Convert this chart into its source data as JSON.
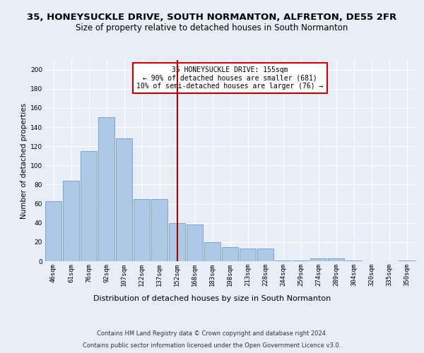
{
  "title1": "35, HONEYSUCKLE DRIVE, SOUTH NORMANTON, ALFRETON, DE55 2FR",
  "title2": "Size of property relative to detached houses in South Normanton",
  "xlabel": "Distribution of detached houses by size in South Normanton",
  "ylabel": "Number of detached properties",
  "footer1": "Contains HM Land Registry data © Crown copyright and database right 2024.",
  "footer2": "Contains public sector information licensed under the Open Government Licence v3.0.",
  "categories": [
    "46sqm",
    "61sqm",
    "76sqm",
    "92sqm",
    "107sqm",
    "122sqm",
    "137sqm",
    "152sqm",
    "168sqm",
    "183sqm",
    "198sqm",
    "213sqm",
    "228sqm",
    "244sqm",
    "259sqm",
    "274sqm",
    "289sqm",
    "304sqm",
    "320sqm",
    "335sqm",
    "350sqm"
  ],
  "values": [
    63,
    84,
    115,
    150,
    128,
    65,
    65,
    40,
    38,
    20,
    15,
    13,
    13,
    1,
    1,
    3,
    3,
    1,
    0,
    0,
    1
  ],
  "bar_color": "#aec8e8",
  "bar_edge_color": "#5a8fc0",
  "vline_x": 7,
  "vline_color": "#aa0000",
  "annotation_text": "35 HONEYSUCKLE DRIVE: 155sqm\n← 90% of detached houses are smaller (681)\n10% of semi-detached houses are larger (76) →",
  "annotation_box_color": "#ffffff",
  "annotation_box_edge": "#cc0000",
  "bg_color": "#e8eef7",
  "plot_bg_color": "#e8eef7",
  "ylim": [
    0,
    210
  ],
  "yticks": [
    0,
    20,
    40,
    60,
    80,
    100,
    120,
    140,
    160,
    180,
    200
  ],
  "grid_color": "#ffffff",
  "title1_fontsize": 9.5,
  "title2_fontsize": 8.5,
  "xlabel_fontsize": 8,
  "ylabel_fontsize": 7.5,
  "tick_fontsize": 6.5,
  "footer_fontsize": 6.0
}
